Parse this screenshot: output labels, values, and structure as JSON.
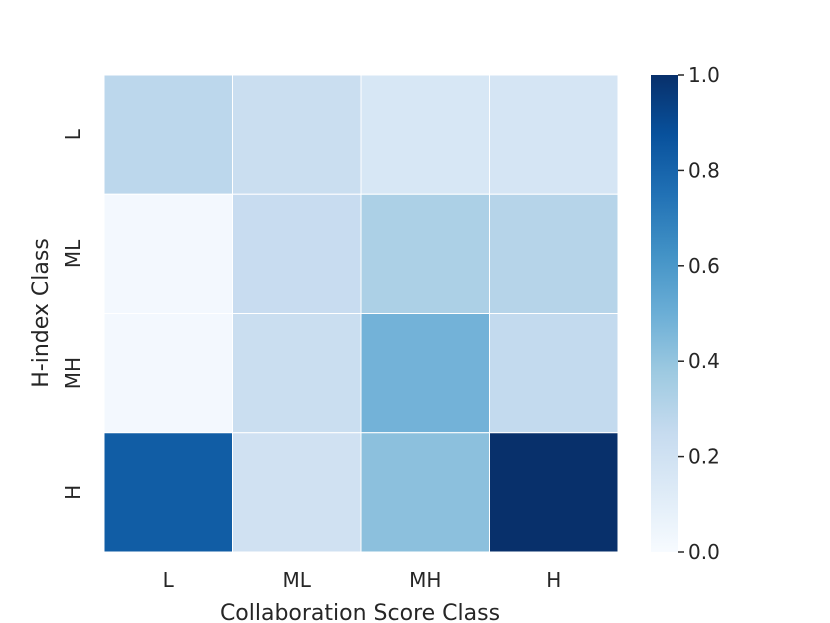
{
  "chart_data": {
    "type": "heatmap",
    "title": "",
    "xlabel": "Collaboration Score Class",
    "ylabel": "H-index Class",
    "x_categories": [
      "L",
      "ML",
      "MH",
      "H"
    ],
    "y_categories": [
      "L",
      "ML",
      "MH",
      "H"
    ],
    "values": [
      [
        0.28,
        0.23,
        0.16,
        0.17
      ],
      [
        0.02,
        0.24,
        0.33,
        0.3
      ],
      [
        0.02,
        0.23,
        0.48,
        0.26
      ],
      [
        0.83,
        0.2,
        0.42,
        1.0
      ]
    ],
    "colormap": "Blues",
    "colorbar": {
      "vmin": 0.0,
      "vmax": 1.0,
      "ticks": [
        "0.0",
        "0.2",
        "0.4",
        "0.6",
        "0.8",
        "1.0"
      ]
    },
    "cell_border_color": "#ffffff",
    "grid": false,
    "legend": "colorbar-right"
  }
}
